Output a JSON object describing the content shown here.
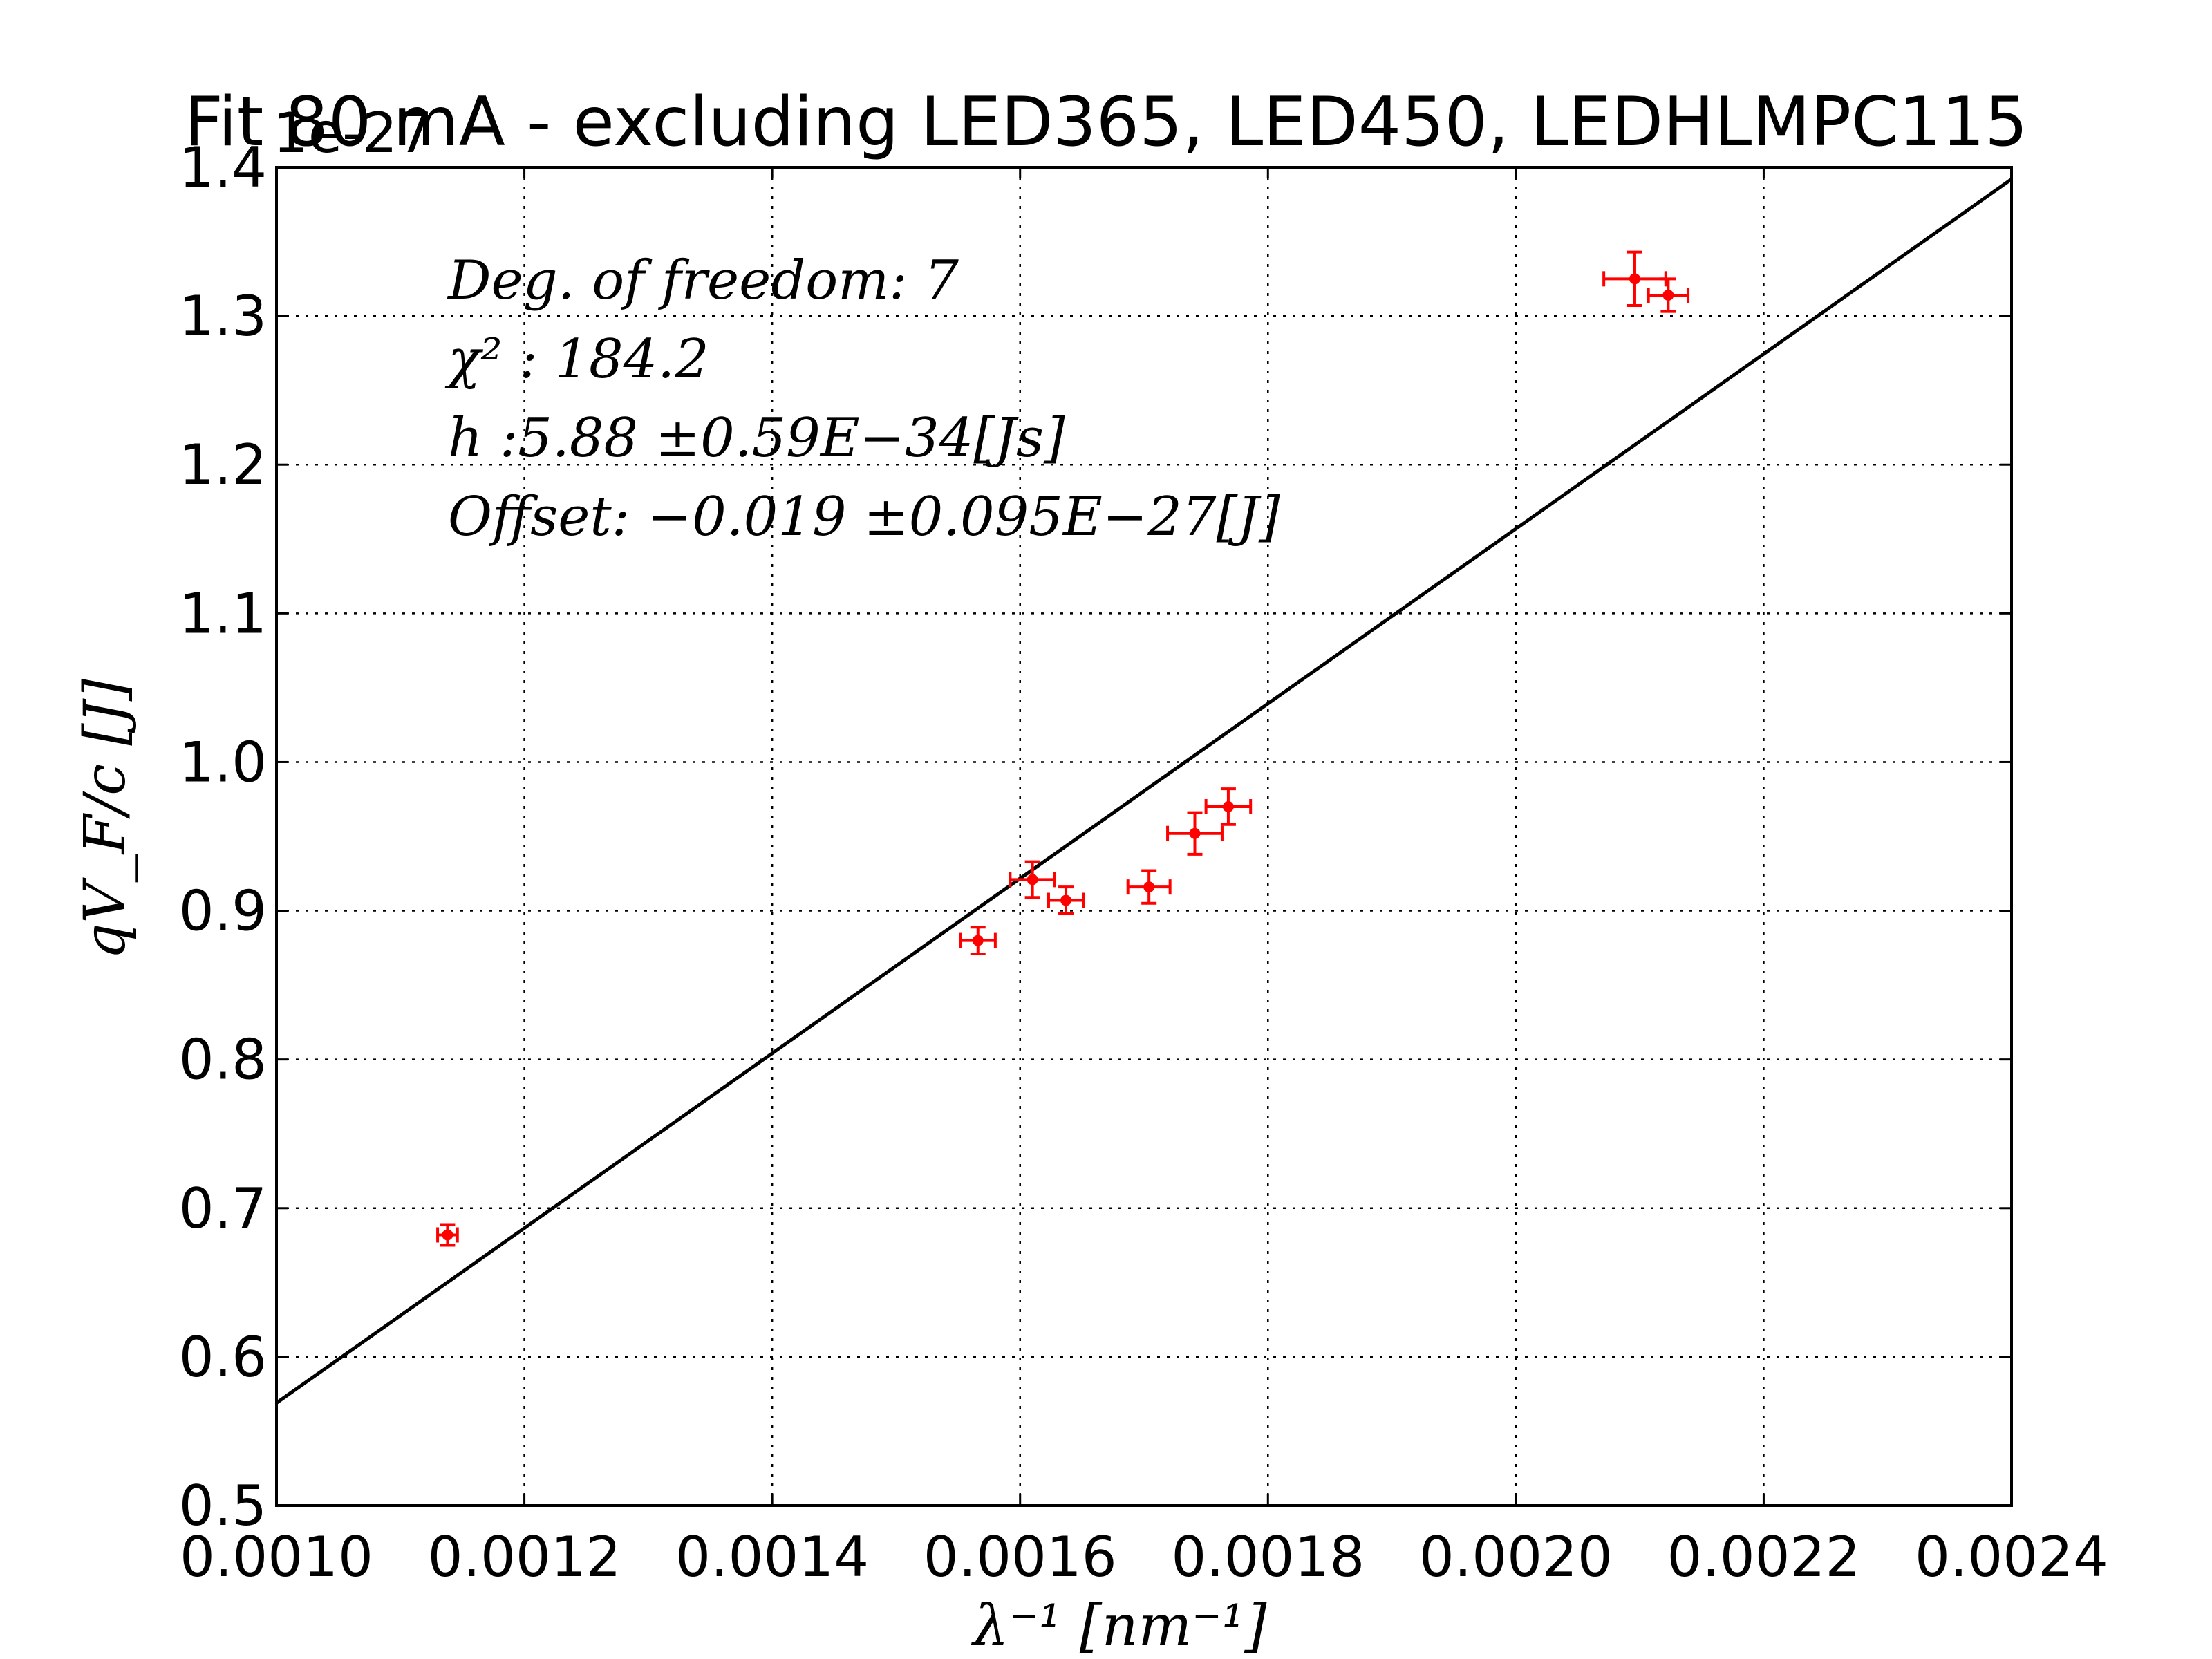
{
  "chart_data": {
    "type": "scatter",
    "title": "Fit 80 mA - excluding LED365, LED450, LEDHLMPC115",
    "xlabel": "λ⁻¹ [nm⁻¹]",
    "ylabel": "qV_F/c [J]",
    "y_offset_text": "1e-27",
    "xlim": [
      0.001,
      0.0024
    ],
    "ylim": [
      0.5,
      1.4
    ],
    "x_ticks": [
      0.001,
      0.0012,
      0.0014,
      0.0016,
      0.0018,
      0.002,
      0.0022,
      0.0024
    ],
    "x_tick_labels": [
      "0.0010",
      "0.0012",
      "0.0014",
      "0.0016",
      "0.0018",
      "0.0020",
      "0.0022",
      "0.0024"
    ],
    "y_ticks": [
      0.5,
      0.6,
      0.7,
      0.8,
      0.9,
      1.0,
      1.1,
      1.2,
      1.3,
      1.4
    ],
    "y_tick_labels": [
      "0.5",
      "0.6",
      "0.7",
      "0.8",
      "0.9",
      "1.0",
      "1.1",
      "1.2",
      "1.3",
      "1.4"
    ],
    "grid": true,
    "series": [
      {
        "kind": "errorbar",
        "color": "#ff0000",
        "points": [
          {
            "x": 0.001138,
            "y": 0.682,
            "xerr": 8e-06,
            "yerr": 0.007
          },
          {
            "x": 0.001566,
            "y": 0.88,
            "xerr": 1.4e-05,
            "yerr": 0.009
          },
          {
            "x": 0.00161,
            "y": 0.921,
            "xerr": 1.8e-05,
            "yerr": 0.012
          },
          {
            "x": 0.001637,
            "y": 0.907,
            "xerr": 1.4e-05,
            "yerr": 0.009
          },
          {
            "x": 0.001704,
            "y": 0.916,
            "xerr": 1.7e-05,
            "yerr": 0.011
          },
          {
            "x": 0.001741,
            "y": 0.952,
            "xerr": 2.2e-05,
            "yerr": 0.014
          },
          {
            "x": 0.001768,
            "y": 0.97,
            "xerr": 1.8e-05,
            "yerr": 0.012
          },
          {
            "x": 0.002096,
            "y": 1.325,
            "xerr": 2.5e-05,
            "yerr": 0.018
          },
          {
            "x": 0.002123,
            "y": 1.314,
            "xerr": 1.6e-05,
            "yerr": 0.011
          }
        ]
      },
      {
        "kind": "line",
        "color": "#000000",
        "x": [
          0.001,
          0.0024
        ],
        "y": [
          0.569,
          1.392
        ]
      }
    ],
    "annotations": [
      "Deg. of freedom: 7",
      "χ² : 184.2",
      "h :5.88 ±0.59E−34[Js]",
      "Offset: −0.019 ±0.095E−27[J]"
    ]
  }
}
